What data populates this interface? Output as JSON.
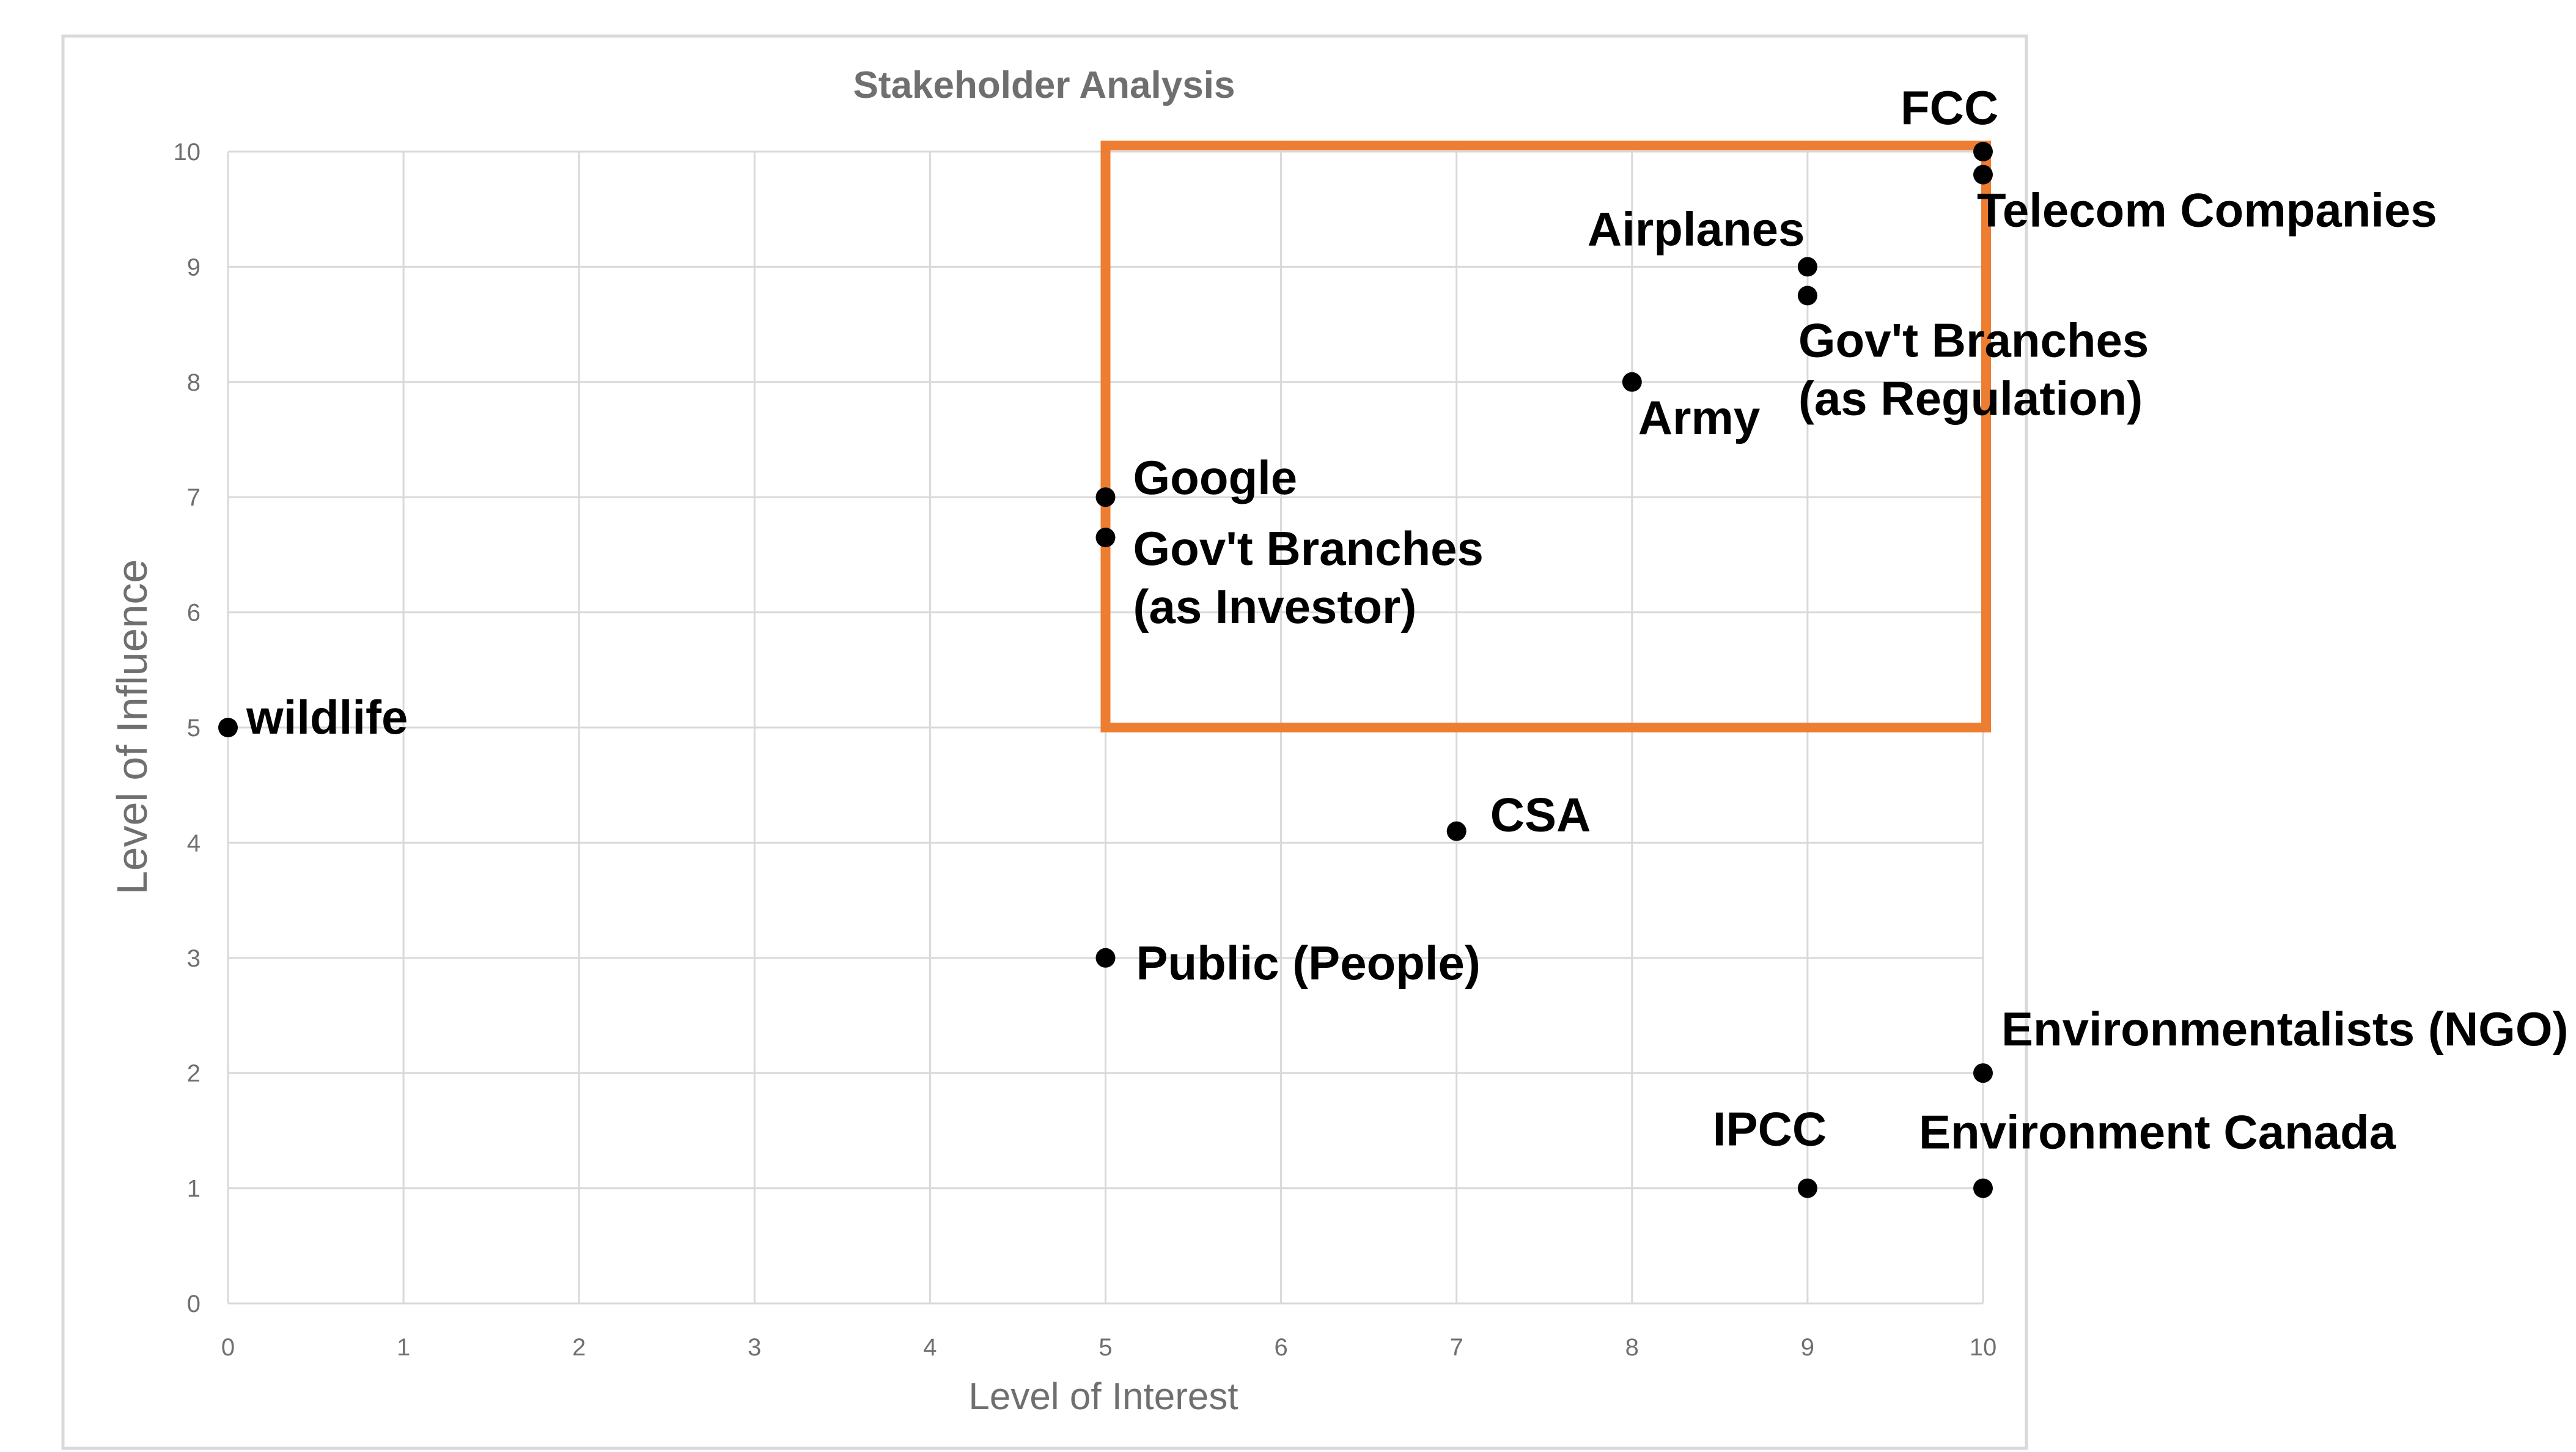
{
  "chart_data": {
    "type": "scatter",
    "title": "Stakeholder Analysis",
    "xlabel": "Level of Interest",
    "ylabel": "Level of Influence",
    "xlim": [
      0,
      10
    ],
    "ylim": [
      0,
      10
    ],
    "x_ticks": [
      "0",
      "1",
      "2",
      "3",
      "4",
      "5",
      "6",
      "7",
      "8",
      "9",
      "10"
    ],
    "y_ticks": [
      "0",
      "1",
      "2",
      "3",
      "4",
      "5",
      "6",
      "7",
      "8",
      "9",
      "10"
    ],
    "grid": true,
    "legend": "none",
    "colors": {
      "points": "#000000",
      "highlight_box": "#ed7d31",
      "grid": "#d9d9d9",
      "text_muted": "#6f6f6f"
    },
    "highlight_region": {
      "x": [
        5,
        10
      ],
      "y": [
        5,
        10
      ]
    },
    "points": [
      {
        "label": "FCC",
        "x": 10,
        "y": 10
      },
      {
        "label": "Telecom Companies",
        "x": 10,
        "y": 9.8
      },
      {
        "label": "Airplanes",
        "x": 9,
        "y": 9
      },
      {
        "label": "Gov't Branches\n(as Regulation)",
        "x": 9,
        "y": 8.75
      },
      {
        "label": "Army",
        "x": 8,
        "y": 8
      },
      {
        "label": "Google",
        "x": 5,
        "y": 7
      },
      {
        "label": "Gov't Branches\n(as Investor)",
        "x": 5,
        "y": 6.65
      },
      {
        "label": "wildlife",
        "x": 0,
        "y": 5
      },
      {
        "label": "CSA",
        "x": 7,
        "y": 4.1
      },
      {
        "label": "Public (People)",
        "x": 5,
        "y": 3
      },
      {
        "label": "Environmentalists (NGO)",
        "x": 10,
        "y": 2
      },
      {
        "label": "IPCC",
        "x": 9,
        "y": 1
      },
      {
        "label": "Environment Canada",
        "x": 10,
        "y": 1
      }
    ]
  }
}
